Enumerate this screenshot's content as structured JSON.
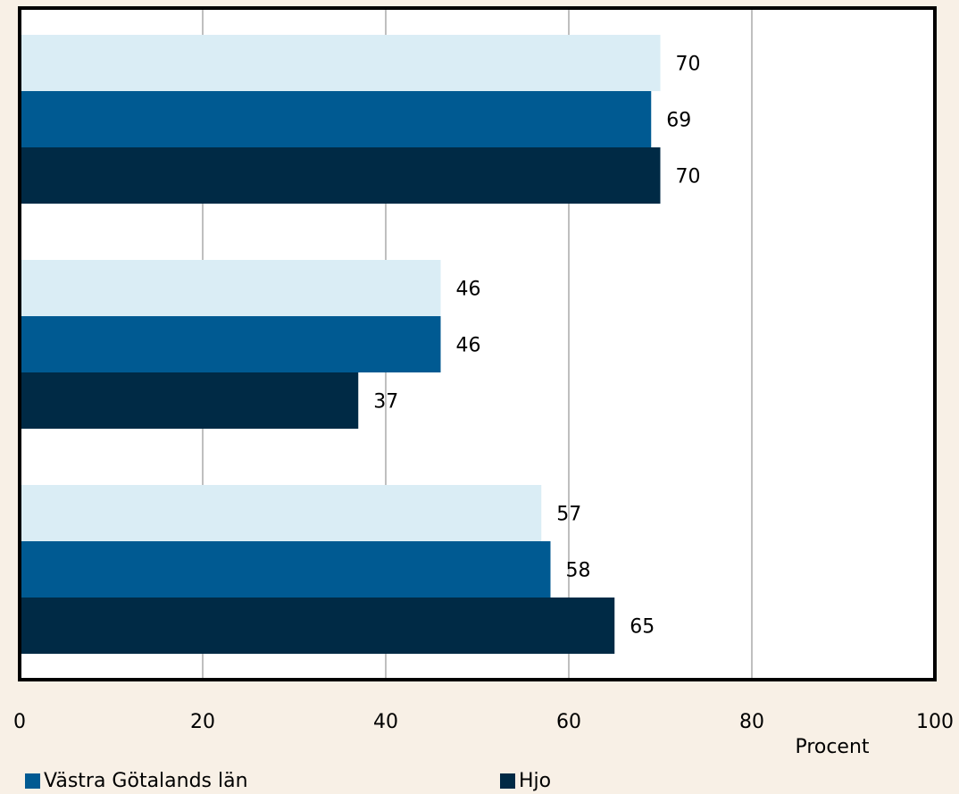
{
  "chart_data": {
    "type": "bar",
    "orientation": "horizontal",
    "title": "",
    "xlabel": "Procent",
    "ylabel": "",
    "xlim": [
      0,
      100
    ],
    "xticks": [
      0,
      20,
      40,
      60,
      80,
      100
    ],
    "grid": "vertical",
    "groups": 3,
    "series": [
      {
        "name": "",
        "color": "#daedf5",
        "values": [
          70,
          46,
          57
        ]
      },
      {
        "name": "Västra Götalands län",
        "color": "#005a92",
        "values": [
          69,
          46,
          58
        ]
      },
      {
        "name": "Hjo",
        "color": "#002a45",
        "values": [
          70,
          37,
          65
        ]
      }
    ],
    "legend": {
      "placement": "bottom"
    },
    "colors": {
      "background": "#f8f0e6",
      "plot_background": "#ffffff",
      "grid": "#7f7f7f",
      "frame": "#000000"
    }
  }
}
